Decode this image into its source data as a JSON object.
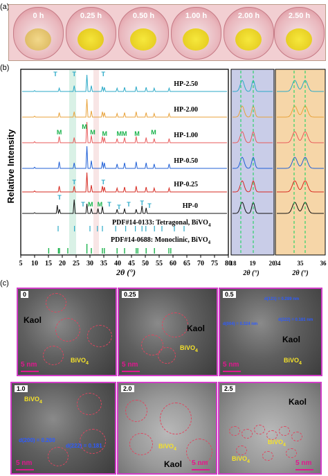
{
  "panel_a": {
    "letter": "(a)",
    "dishes": [
      "0 h",
      "0.25 h",
      "0.50 h",
      "1.00 h",
      "2.00 h",
      "2.50 h"
    ]
  },
  "panel_b": {
    "letter": "(b)",
    "ylabel": "Relative Intensity",
    "xlabel": "2θ (°)",
    "series": [
      "HP-2.50",
      "HP-2.00",
      "HP-1.00",
      "HP-0.50",
      "HP-0.25",
      "HP-0"
    ],
    "series_colors": [
      "#2aa9c7",
      "#e8a23a",
      "#e85a5a",
      "#1f5fd6",
      "#d6281f",
      "#111111"
    ],
    "peak_markers": {
      "T": "T",
      "M": "M",
      "MM": "MM"
    },
    "reference_tetragonal": "PDF#14-0133: Tetragonal,  BiVO",
    "reference_monoclinic": "PDF#14-0688: Monoclinic, BiVO",
    "subscript_4": "4",
    "xticks_main": [
      "5",
      "10",
      "15",
      "20",
      "25",
      "30",
      "35",
      "40",
      "45",
      "50",
      "55",
      "60",
      "65",
      "70",
      "75",
      "80"
    ],
    "xticks_zoom1": [
      "18",
      "19",
      "20"
    ],
    "xticks_zoom2": [
      "34",
      "35",
      "36"
    ]
  },
  "chart_data": {
    "type": "line",
    "title": "",
    "xlabel": "2θ (°)",
    "ylabel": "Relative Intensity",
    "xlim": [
      5,
      80
    ],
    "series": [
      {
        "name": "HP-2.50",
        "x": [
          10,
          18.9,
          24.3,
          28.9,
          30.5,
          34.5,
          35.2,
          39.8,
          42.5,
          46.7,
          50.3,
          53.2,
          58.6
        ],
        "values": [
          0.05,
          0.2,
          0.35,
          1.0,
          0.35,
          0.3,
          0.25,
          0.2,
          0.25,
          0.3,
          0.25,
          0.2,
          0.2
        ]
      },
      {
        "name": "HP-2.00",
        "x": [
          10,
          18.9,
          24.3,
          28.9,
          30.5,
          34.5,
          35.2,
          39.8,
          42.5,
          46.7,
          50.3,
          53.2,
          58.6
        ],
        "values": [
          0.05,
          0.25,
          0.3,
          1.0,
          0.35,
          0.3,
          0.25,
          0.2,
          0.25,
          0.3,
          0.25,
          0.2,
          0.2
        ]
      },
      {
        "name": "HP-1.00",
        "x": [
          10,
          18.9,
          24.3,
          28.9,
          30.5,
          34.5,
          35.2,
          39.8,
          42.5,
          46.7,
          50.3,
          53.2,
          58.6
        ],
        "values": [
          0.05,
          0.3,
          0.25,
          1.0,
          0.35,
          0.3,
          0.25,
          0.2,
          0.25,
          0.3,
          0.25,
          0.2,
          0.2
        ]
      },
      {
        "name": "HP-0.50",
        "x": [
          10,
          18.9,
          24.3,
          28.9,
          30.5,
          34.5,
          35.2,
          39.8,
          42.5,
          46.7,
          50.3,
          53.2,
          58.6
        ],
        "values": [
          0.05,
          0.3,
          0.25,
          1.0,
          0.35,
          0.3,
          0.25,
          0.2,
          0.25,
          0.3,
          0.25,
          0.2,
          0.2
        ]
      },
      {
        "name": "HP-0.25",
        "x": [
          10,
          18.9,
          24.3,
          28.9,
          30.5,
          34.5,
          35.2,
          39.8,
          42.5,
          46.7,
          50.3,
          53.2,
          58.6
        ],
        "values": [
          0.05,
          0.3,
          0.3,
          1.0,
          0.35,
          0.3,
          0.25,
          0.2,
          0.25,
          0.3,
          0.25,
          0.2,
          0.2
        ]
      },
      {
        "name": "HP-0",
        "x": [
          10,
          18.2,
          19.0,
          24.3,
          28.9,
          30.5,
          32.9,
          34.5,
          39.8,
          42.5,
          46.7,
          48.8,
          50.3
        ],
        "values": [
          0.05,
          0.6,
          0.3,
          1.0,
          0.7,
          0.35,
          0.35,
          0.5,
          0.3,
          0.35,
          0.3,
          0.55,
          0.4
        ]
      }
    ]
  },
  "panel_c": {
    "letter": "(c)",
    "tiles": [
      {
        "tag": "0",
        "labels": [
          "Kaol",
          "BiVO",
          "4"
        ],
        "scale": "5 nm"
      },
      {
        "tag": "0.25",
        "labels": [
          "Kaol",
          "BiVO",
          "4"
        ],
        "scale": "5 nm"
      },
      {
        "tag": "0.5",
        "labels": [
          "Kaol",
          "BiVO",
          "4"
        ],
        "scale": "5 nm",
        "d1": "d(121) = 0.289 nm",
        "d2": "d(222) = 0.181 nm",
        "d3": "d(004) = 0.324 nm"
      },
      {
        "tag": "1.0",
        "labels": [
          "BiVO",
          "4"
        ],
        "scale": "5 nm",
        "d1": "d(200) = 0.260",
        "d2": "d(222) = 0.181"
      },
      {
        "tag": "2.0",
        "labels": [
          "BiVO",
          "4",
          "Kaol"
        ],
        "scale": "5 nm"
      },
      {
        "tag": "2.5",
        "labels": [
          "Kaol",
          "BiVO",
          "4",
          "BiVO",
          "4"
        ],
        "scale": "5 nm"
      }
    ]
  }
}
